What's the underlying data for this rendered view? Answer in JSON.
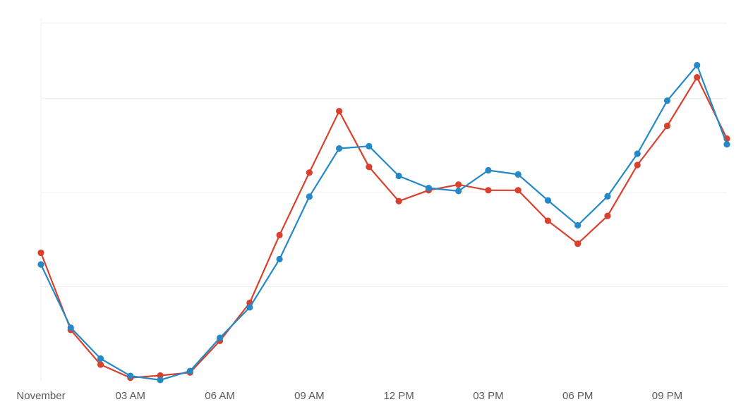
{
  "chart_data": {
    "type": "line",
    "title": "",
    "xlabel": "",
    "ylabel": "",
    "x_tick_labels": [
      "November",
      "03 AM",
      "06 AM",
      "09 AM",
      "12 PM",
      "03 PM",
      "06 PM",
      "09 PM"
    ],
    "x_tick_hours": [
      0,
      3,
      6,
      9,
      12,
      15,
      18,
      21
    ],
    "xlim": [
      0,
      23
    ],
    "ylim": [
      0,
      100
    ],
    "grid": true,
    "legend": "none",
    "series": [
      {
        "color": "#d9412e",
        "x": [
          0,
          1,
          2,
          3,
          4,
          5,
          6,
          7,
          8,
          9,
          10,
          11,
          12,
          13,
          14,
          15,
          16,
          17,
          18,
          19,
          20,
          21,
          22,
          23
        ],
        "values": [
          34.0,
          13.5,
          4.3,
          0.8,
          1.4,
          2.2,
          10.6,
          20.7,
          38.7,
          55.3,
          71.6,
          56.8,
          47.7,
          50.6,
          52.1,
          50.6,
          50.6,
          42.5,
          36.4,
          43.8,
          57.3,
          67.7,
          80.6,
          64.3
        ]
      },
      {
        "color": "#2589c8",
        "x": [
          0,
          1,
          2,
          3,
          4,
          5,
          6,
          7,
          8,
          9,
          10,
          11,
          12,
          13,
          14,
          15,
          16,
          17,
          18,
          19,
          20,
          21,
          22,
          23
        ],
        "values": [
          30.9,
          14.1,
          5.9,
          1.3,
          0.2,
          2.6,
          11.4,
          19.5,
          32.3,
          48.9,
          61.7,
          62.3,
          54.4,
          51.2,
          50.4,
          55.9,
          54.8,
          47.9,
          41.3,
          49.0,
          60.3,
          74.4,
          83.8,
          62.8
        ]
      }
    ]
  }
}
